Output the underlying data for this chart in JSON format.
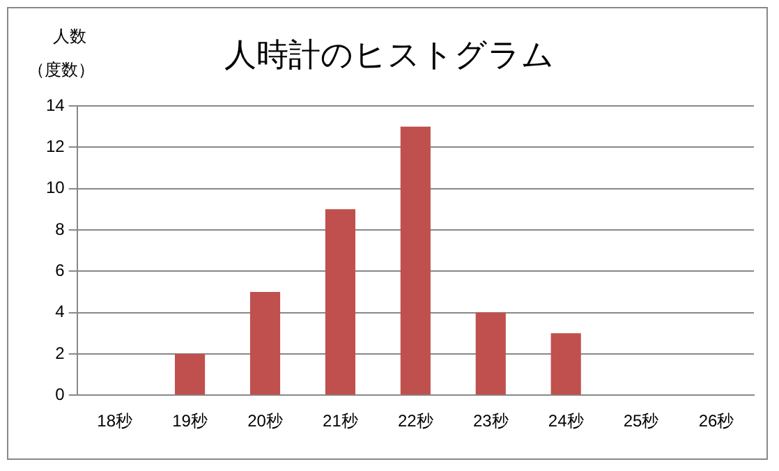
{
  "chart_data": {
    "type": "bar",
    "title": "人時計のヒストグラム",
    "ylabel": "人数",
    "annotations": [
      "（度数）"
    ],
    "categories": [
      "18秒",
      "19秒",
      "20秒",
      "21秒",
      "22秒",
      "23秒",
      "24秒",
      "25秒",
      "26秒"
    ],
    "values": [
      0,
      2,
      5,
      9,
      13,
      4,
      3,
      0,
      0
    ],
    "color": "#c0504d",
    "ylim": [
      0,
      14
    ],
    "yticks": [
      0,
      2,
      4,
      6,
      8,
      10,
      12,
      14
    ],
    "grid": "y",
    "legend": false
  }
}
